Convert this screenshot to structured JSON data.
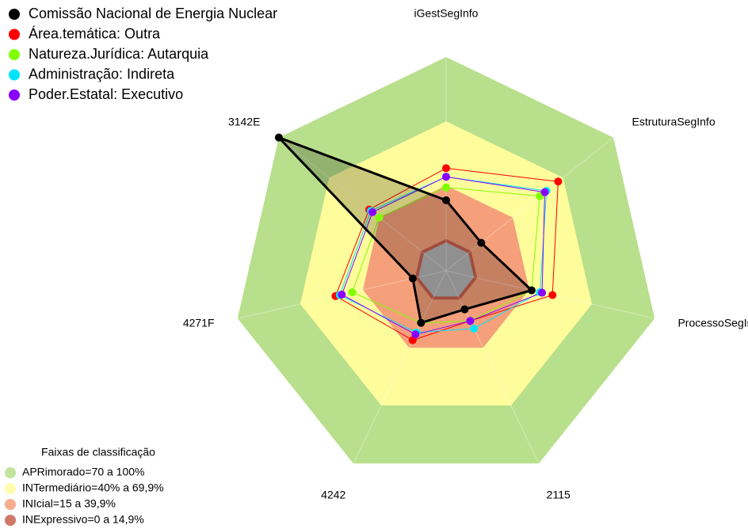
{
  "chart_data": {
    "type": "radar",
    "categories": [
      "iGestSegInfo",
      "EstruturaSegInfo",
      "ProcessoSegInfo",
      "2115",
      "4242",
      "4271F",
      "3142E"
    ],
    "ylim": [
      0,
      100
    ],
    "series": [
      {
        "name": "Comissão Nacional de Energia Nuclear",
        "color": "#000000",
        "values": [
          33,
          21,
          41,
          20,
          27,
          16,
          100
        ]
      },
      {
        "name": "Área.temática: Outra",
        "color": "#ff0000",
        "values": [
          48,
          67,
          51,
          26,
          36,
          53,
          46
        ]
      },
      {
        "name": "Natureza.Jurídica: Autarquia",
        "color": "#7fff00",
        "values": [
          39,
          56,
          41,
          26,
          27,
          45,
          40
        ]
      },
      {
        "name": "Administração: Indireta",
        "color": "#00e5ff",
        "values": [
          44,
          60,
          45,
          30,
          32,
          51,
          45
        ]
      },
      {
        "name": "Poder.Estatal: Executivo",
        "color": "#8a00ff",
        "values": [
          44,
          59,
          46,
          26,
          33,
          50,
          44
        ]
      }
    ],
    "bands_title": "Faixas de classificação",
    "bands": [
      {
        "name": "APRimorado=70 a 100%",
        "from": 70,
        "to": 100,
        "color": "#b8df8c"
      },
      {
        "name": "INTermediário=40% a 69,9%",
        "from": 40,
        "to": 69.9,
        "color": "#fffc9c"
      },
      {
        "name": "INIcial=15 a 39,9%",
        "from": 15,
        "to": 39.9,
        "color": "#f5a07a"
      },
      {
        "name": "INExpressivo=0 a 14,9%",
        "from": 0,
        "to": 14.9,
        "color": "#c8604c"
      }
    ]
  }
}
